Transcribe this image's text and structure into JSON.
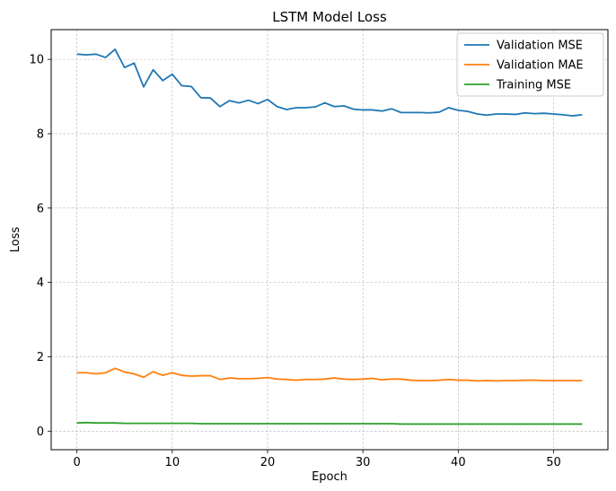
{
  "chart_data": {
    "type": "line",
    "title": "LSTM Model Loss",
    "xlabel": "Epoch",
    "ylabel": "Loss",
    "xlim": [
      -2.7,
      55.7
    ],
    "ylim": [
      -0.5,
      10.8
    ],
    "xticks": [
      0,
      10,
      20,
      30,
      40,
      50
    ],
    "yticks": [
      0,
      2,
      4,
      6,
      8,
      10
    ],
    "grid": true,
    "legend_position": "top-right",
    "x": [
      0,
      1,
      2,
      3,
      4,
      5,
      6,
      7,
      8,
      9,
      10,
      11,
      12,
      13,
      14,
      15,
      16,
      17,
      18,
      19,
      20,
      21,
      22,
      23,
      24,
      25,
      26,
      27,
      28,
      29,
      30,
      31,
      32,
      33,
      34,
      35,
      36,
      37,
      38,
      39,
      40,
      41,
      42,
      43,
      44,
      45,
      46,
      47,
      48,
      49,
      50,
      51,
      52,
      53
    ],
    "series": [
      {
        "name": "Validation MSE",
        "color": "#1f77b4",
        "values": [
          10.14,
          10.12,
          10.14,
          10.05,
          10.27,
          9.78,
          9.9,
          9.26,
          9.72,
          9.43,
          9.6,
          9.29,
          9.27,
          8.97,
          8.96,
          8.73,
          8.89,
          8.83,
          8.9,
          8.81,
          8.92,
          8.73,
          8.65,
          8.7,
          8.7,
          8.72,
          8.83,
          8.73,
          8.75,
          8.66,
          8.64,
          8.64,
          8.61,
          8.67,
          8.57,
          8.57,
          8.57,
          8.56,
          8.58,
          8.7,
          8.63,
          8.6,
          8.53,
          8.5,
          8.53,
          8.53,
          8.52,
          8.56,
          8.54,
          8.55,
          8.53,
          8.51,
          8.48,
          8.51
        ]
      },
      {
        "name": "Validation MAE",
        "color": "#ff7f0e",
        "values": [
          1.57,
          1.57,
          1.54,
          1.57,
          1.69,
          1.59,
          1.54,
          1.45,
          1.6,
          1.5,
          1.57,
          1.5,
          1.48,
          1.49,
          1.49,
          1.39,
          1.43,
          1.41,
          1.41,
          1.42,
          1.44,
          1.4,
          1.39,
          1.37,
          1.39,
          1.39,
          1.4,
          1.43,
          1.4,
          1.39,
          1.4,
          1.42,
          1.38,
          1.4,
          1.4,
          1.37,
          1.36,
          1.36,
          1.37,
          1.39,
          1.37,
          1.37,
          1.35,
          1.36,
          1.35,
          1.36,
          1.36,
          1.37,
          1.37,
          1.36,
          1.36,
          1.36,
          1.36,
          1.36
        ]
      },
      {
        "name": "Training MSE",
        "color": "#2ca02c",
        "values": [
          0.22,
          0.23,
          0.22,
          0.22,
          0.22,
          0.21,
          0.21,
          0.21,
          0.21,
          0.21,
          0.21,
          0.21,
          0.21,
          0.2,
          0.2,
          0.2,
          0.2,
          0.2,
          0.2,
          0.2,
          0.2,
          0.2,
          0.2,
          0.2,
          0.2,
          0.2,
          0.2,
          0.2,
          0.2,
          0.2,
          0.2,
          0.2,
          0.2,
          0.2,
          0.19,
          0.19,
          0.19,
          0.19,
          0.19,
          0.19,
          0.19,
          0.19,
          0.19,
          0.19,
          0.19,
          0.19,
          0.19,
          0.19,
          0.19,
          0.19,
          0.19,
          0.19,
          0.19,
          0.19
        ]
      }
    ]
  }
}
